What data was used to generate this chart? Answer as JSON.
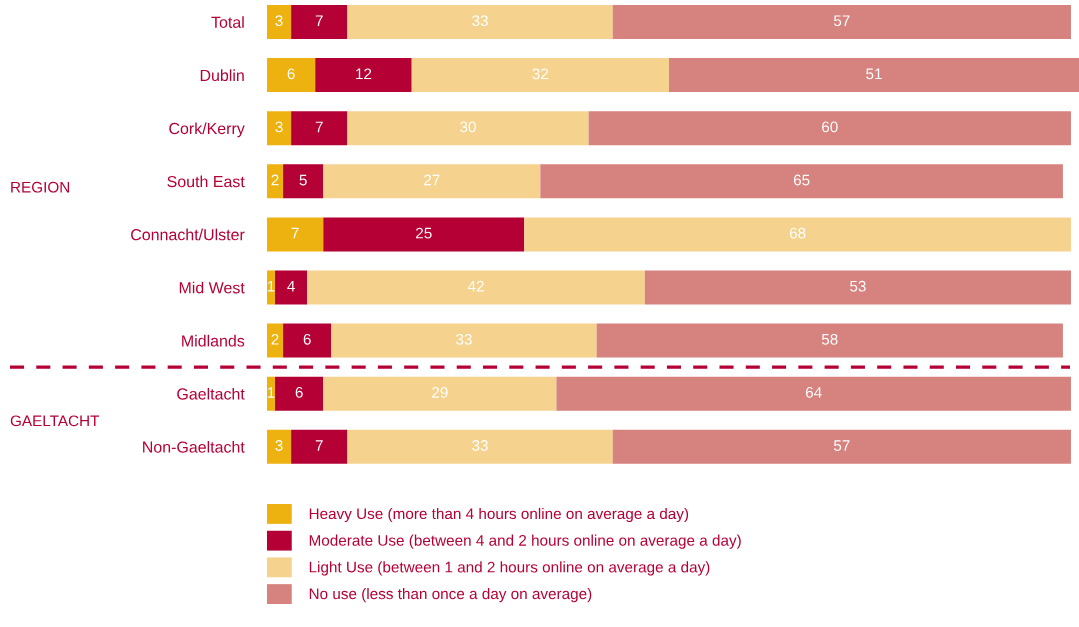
{
  "chart_data": [
    {
      "type": "bar",
      "orientation": "horizontal",
      "stacked": true,
      "categories": [
        "Total",
        "Dublin",
        "Cork/Kerry",
        "South East",
        "Connacht/Ulster",
        "Mid West",
        "Midlands"
      ],
      "series": [
        {
          "color": "#edb110",
          "values": [
            3,
            6,
            3,
            2,
            7,
            1,
            2
          ]
        },
        {
          "color": "#b50035",
          "values": [
            7,
            12,
            7,
            5,
            25,
            4,
            6
          ]
        },
        {
          "color": "#f5d38e",
          "values": [
            33,
            32,
            30,
            27,
            68,
            42,
            33
          ]
        },
        {
          "color": "#d6827e",
          "values": [
            57,
            51,
            60,
            65,
            null,
            53,
            58
          ]
        }
      ],
      "tick_labels": "y",
      "data_labels": true,
      "annotations": [
        "REGION"
      ]
    },
    {
      "type": "bar",
      "orientation": "horizontal",
      "stacked": true,
      "categories": [
        "Gaeltacht",
        "Non-Gaeltacht"
      ],
      "series": [
        {
          "name": "Heavy Use (more than 4 hours online on average a day)",
          "color": "#edb110",
          "values": [
            1,
            3
          ]
        },
        {
          "name": "Moderate Use (between 4 and 2 hours online on average a day)",
          "color": "#b50035",
          "values": [
            6,
            7
          ]
        },
        {
          "name": "Light Use (between 1 and 2 hours online on average a day)",
          "color": "#f5d38e",
          "values": [
            29,
            33
          ]
        },
        {
          "name": "No use (less than once a day on average)",
          "color": "#d6827e",
          "values": [
            64,
            57
          ]
        }
      ],
      "tick_labels": "y",
      "data_labels": true,
      "legend": "bottom",
      "annotations": [
        "GAELTACHT"
      ]
    }
  ]
}
